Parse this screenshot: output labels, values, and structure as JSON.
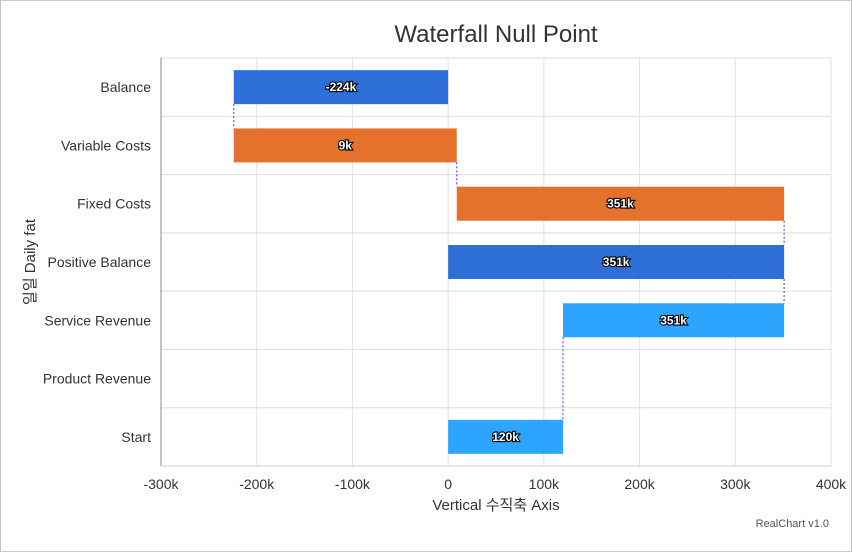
{
  "chart_data": {
    "type": "bar",
    "orientation": "horizontal",
    "title": "Waterfall Null Point",
    "xlabel": "Vertical 수직축 Axis",
    "ylabel": "일일 Daily fat",
    "xlim": [
      -300000,
      400000
    ],
    "x_ticks": [
      -300000,
      -200000,
      -100000,
      0,
      100000,
      200000,
      300000,
      400000
    ],
    "x_tick_labels": [
      "-300k",
      "-200k",
      "-100k",
      "0",
      "100k",
      "200k",
      "300k",
      "400k"
    ],
    "grid": true,
    "categories": [
      "Start",
      "Product Revenue",
      "Service Revenue",
      "Positive Balance",
      "Fixed Costs",
      "Variable Costs",
      "Balance"
    ],
    "bars": [
      {
        "category": "Start",
        "from": 0,
        "to": 120000,
        "label": "120k",
        "color": "#22a0ff"
      },
      {
        "category": "Product Revenue",
        "from": null,
        "to": null,
        "label": "",
        "color": "#22a0ff"
      },
      {
        "category": "Service Revenue",
        "from": 120000,
        "to": 351000,
        "label": "351k",
        "color": "#22a0ff"
      },
      {
        "category": "Positive Balance",
        "from": 0,
        "to": 351000,
        "label": "351k",
        "color": "#2368d6"
      },
      {
        "category": "Fixed Costs",
        "from": 9000,
        "to": 351000,
        "label": "351k",
        "color": "#e36a21"
      },
      {
        "category": "Variable Costs",
        "from": -224000,
        "to": 9000,
        "label": "9k",
        "color": "#e36a21"
      },
      {
        "category": "Balance",
        "from": -224000,
        "to": 0,
        "label": "-224k",
        "color": "#2368d6"
      }
    ],
    "connector_color": "#5533cc"
  },
  "credit": "RealChart v1.0"
}
